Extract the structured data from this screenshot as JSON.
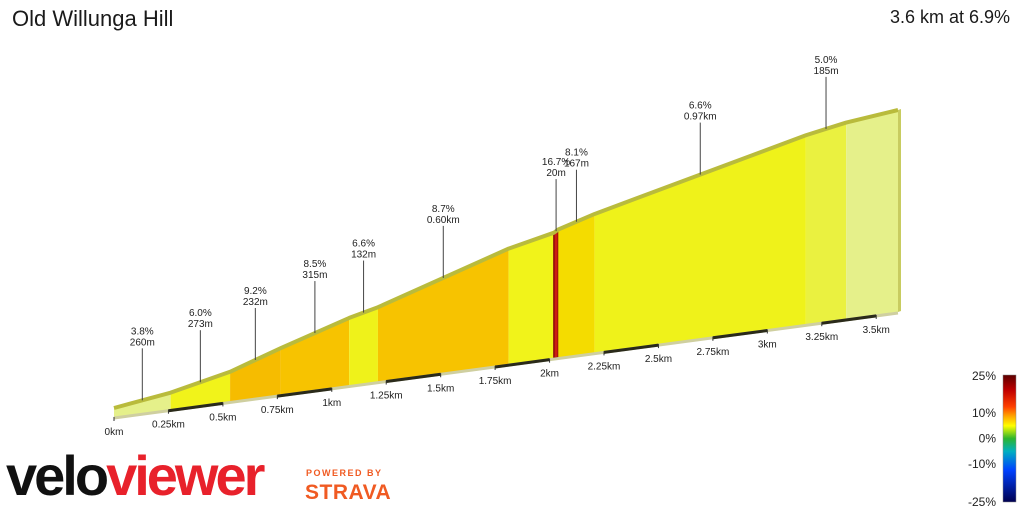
{
  "title": "Old Willunga Hill",
  "summary": "3.6 km at 6.9%",
  "brand": {
    "left": "velo",
    "right": "viewer",
    "powered_by": "POWERED BY",
    "partner": "STRAVA"
  },
  "colors": {
    "brand_red": "#e8212b",
    "strava_orange": "#f05a22"
  },
  "chart_data": {
    "type": "area",
    "x_unit": "km",
    "xlim": [
      0,
      3.6
    ],
    "x_ticks": [
      {
        "km": 0,
        "label": "0km"
      },
      {
        "km": 0.25,
        "label": "0.25km"
      },
      {
        "km": 0.5,
        "label": "0.5km"
      },
      {
        "km": 0.75,
        "label": "0.75km"
      },
      {
        "km": 1,
        "label": "1km"
      },
      {
        "km": 1.25,
        "label": "1.25km"
      },
      {
        "km": 1.5,
        "label": "1.5km"
      },
      {
        "km": 1.75,
        "label": "1.75km"
      },
      {
        "km": 2,
        "label": "2km"
      },
      {
        "km": 2.25,
        "label": "2.25km"
      },
      {
        "km": 2.5,
        "label": "2.5km"
      },
      {
        "km": 2.75,
        "label": "2.75km"
      },
      {
        "km": 3,
        "label": "3km"
      },
      {
        "km": 3.25,
        "label": "3.25km"
      },
      {
        "km": 3.5,
        "label": "3.5km"
      }
    ],
    "segments": [
      {
        "start_km": 0.0,
        "end_km": 0.26,
        "gradient": 3.8,
        "grade_label": "3.8%",
        "length_label": "260m"
      },
      {
        "start_km": 0.26,
        "end_km": 0.533,
        "gradient": 6.0,
        "grade_label": "6.0%",
        "length_label": "273m"
      },
      {
        "start_km": 0.533,
        "end_km": 0.765,
        "gradient": 9.2,
        "grade_label": "9.2%",
        "length_label": "232m"
      },
      {
        "start_km": 0.765,
        "end_km": 1.08,
        "gradient": 8.5,
        "grade_label": "8.5%",
        "length_label": "315m"
      },
      {
        "start_km": 1.08,
        "end_km": 1.212,
        "gradient": 6.6,
        "grade_label": "6.6%",
        "length_label": "132m"
      },
      {
        "start_km": 1.212,
        "end_km": 1.812,
        "gradient": 8.7,
        "grade_label": "8.7%",
        "length_label": "0.60km"
      },
      {
        "start_km": 1.812,
        "end_km": 2.02,
        "gradient": 6.0,
        "grade_label": "",
        "length_label": ""
      },
      {
        "start_km": 2.02,
        "end_km": 2.04,
        "gradient": 16.7,
        "grade_label": "16.7%",
        "length_label": "20m"
      },
      {
        "start_km": 2.04,
        "end_km": 2.207,
        "gradient": 8.1,
        "grade_label": "8.1%",
        "length_label": "167m"
      },
      {
        "start_km": 2.207,
        "end_km": 3.177,
        "gradient": 6.6,
        "grade_label": "6.6%",
        "length_label": "0.97km"
      },
      {
        "start_km": 3.177,
        "end_km": 3.362,
        "gradient": 5.0,
        "grade_label": "5.0%",
        "length_label": "185m"
      },
      {
        "start_km": 3.362,
        "end_km": 3.6,
        "gradient": 3.0,
        "grade_label": "",
        "length_label": ""
      }
    ],
    "legend": {
      "type": "colorbar",
      "placement": "bottom-right",
      "labels": [
        {
          "value": 25,
          "text": "25%"
        },
        {
          "value": 10,
          "text": "10%"
        },
        {
          "value": 0,
          "text": "0%"
        },
        {
          "value": -10,
          "text": "-10%"
        },
        {
          "value": -25,
          "text": "-25%"
        }
      ]
    }
  }
}
